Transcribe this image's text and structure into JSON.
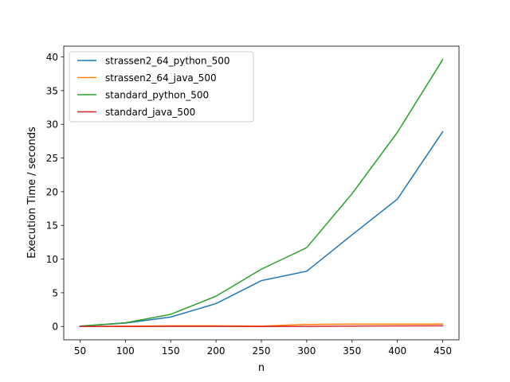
{
  "chart_data": {
    "type": "line",
    "title": "",
    "xlabel": "n",
    "ylabel": "Execution Time / seconds",
    "x": [
      50,
      100,
      150,
      200,
      250,
      300,
      350,
      400,
      450
    ],
    "xlim": [
      32,
      468
    ],
    "ylim": [
      -1.98,
      41.6
    ],
    "xticks": [
      50,
      100,
      150,
      200,
      250,
      300,
      350,
      400,
      450
    ],
    "yticks": [
      0,
      5,
      10,
      15,
      20,
      25,
      30,
      35,
      40
    ],
    "grid": false,
    "legend_position": "top-left",
    "series": [
      {
        "name": "strassen2_64_python_500",
        "color": "#1f77b4",
        "values": [
          0.05,
          0.5,
          1.4,
          3.4,
          6.8,
          8.2,
          13.6,
          18.9,
          28.9
        ]
      },
      {
        "name": "strassen2_64_java_500",
        "color": "#ff7f0e",
        "values": [
          0.0,
          0.05,
          0.1,
          0.1,
          0.05,
          0.3,
          0.35,
          0.35,
          0.35
        ]
      },
      {
        "name": "standard_python_500",
        "color": "#2ca02c",
        "values": [
          0.05,
          0.55,
          1.8,
          4.5,
          8.5,
          11.7,
          19.7,
          28.8,
          39.6
        ]
      },
      {
        "name": "standard_java_500",
        "color": "#d62728",
        "values": [
          0.0,
          0.0,
          0.02,
          0.02,
          0.0,
          0.02,
          0.05,
          0.08,
          0.1
        ]
      }
    ]
  }
}
